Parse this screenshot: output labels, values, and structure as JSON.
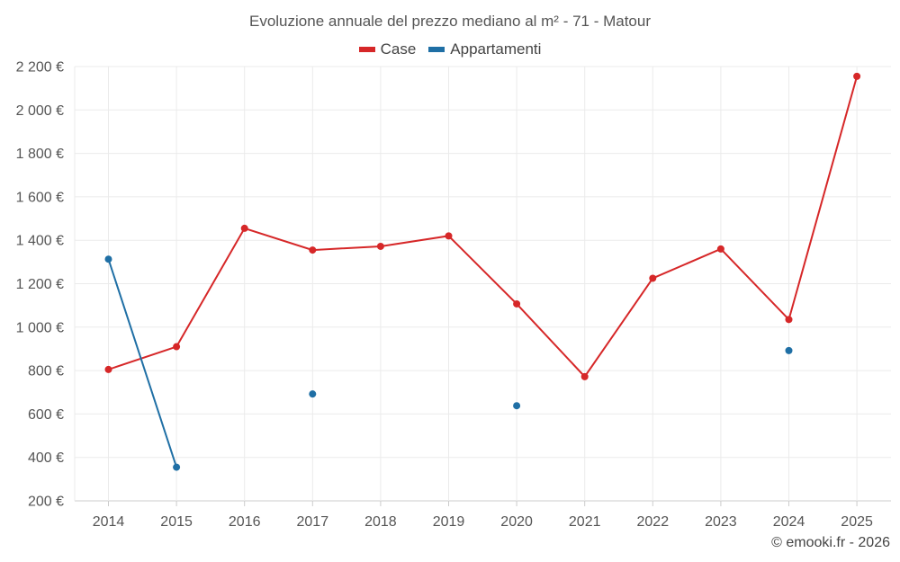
{
  "chart_data": {
    "type": "line",
    "title": "Evoluzione annuale del prezzo mediano al m² - 71 - Matour",
    "categories": [
      "2014",
      "2015",
      "2016",
      "2017",
      "2018",
      "2019",
      "2020",
      "2021",
      "2022",
      "2023",
      "2024",
      "2025"
    ],
    "y_ticks": [
      "200 €",
      "400 €",
      "600 €",
      "800 €",
      "1 000 €",
      "1 200 €",
      "1 400 €",
      "1 600 €",
      "1 800 €",
      "2 000 €",
      "2 200 €"
    ],
    "ylim": [
      200,
      2200
    ],
    "xlabel": "",
    "ylabel": "",
    "grid": true,
    "legend_position": "top-center",
    "series": [
      {
        "name": "Case",
        "color": "#d62728",
        "values": [
          805,
          910,
          1455,
          1355,
          1372,
          1420,
          1107,
          772,
          1225,
          1360,
          1035,
          2155
        ]
      },
      {
        "name": "Appartamenti",
        "color": "#1f6fa5",
        "values": [
          1313,
          355,
          null,
          692,
          null,
          null,
          638,
          null,
          null,
          null,
          892,
          null
        ]
      }
    ]
  },
  "credit": "© emooki.fr - 2026"
}
